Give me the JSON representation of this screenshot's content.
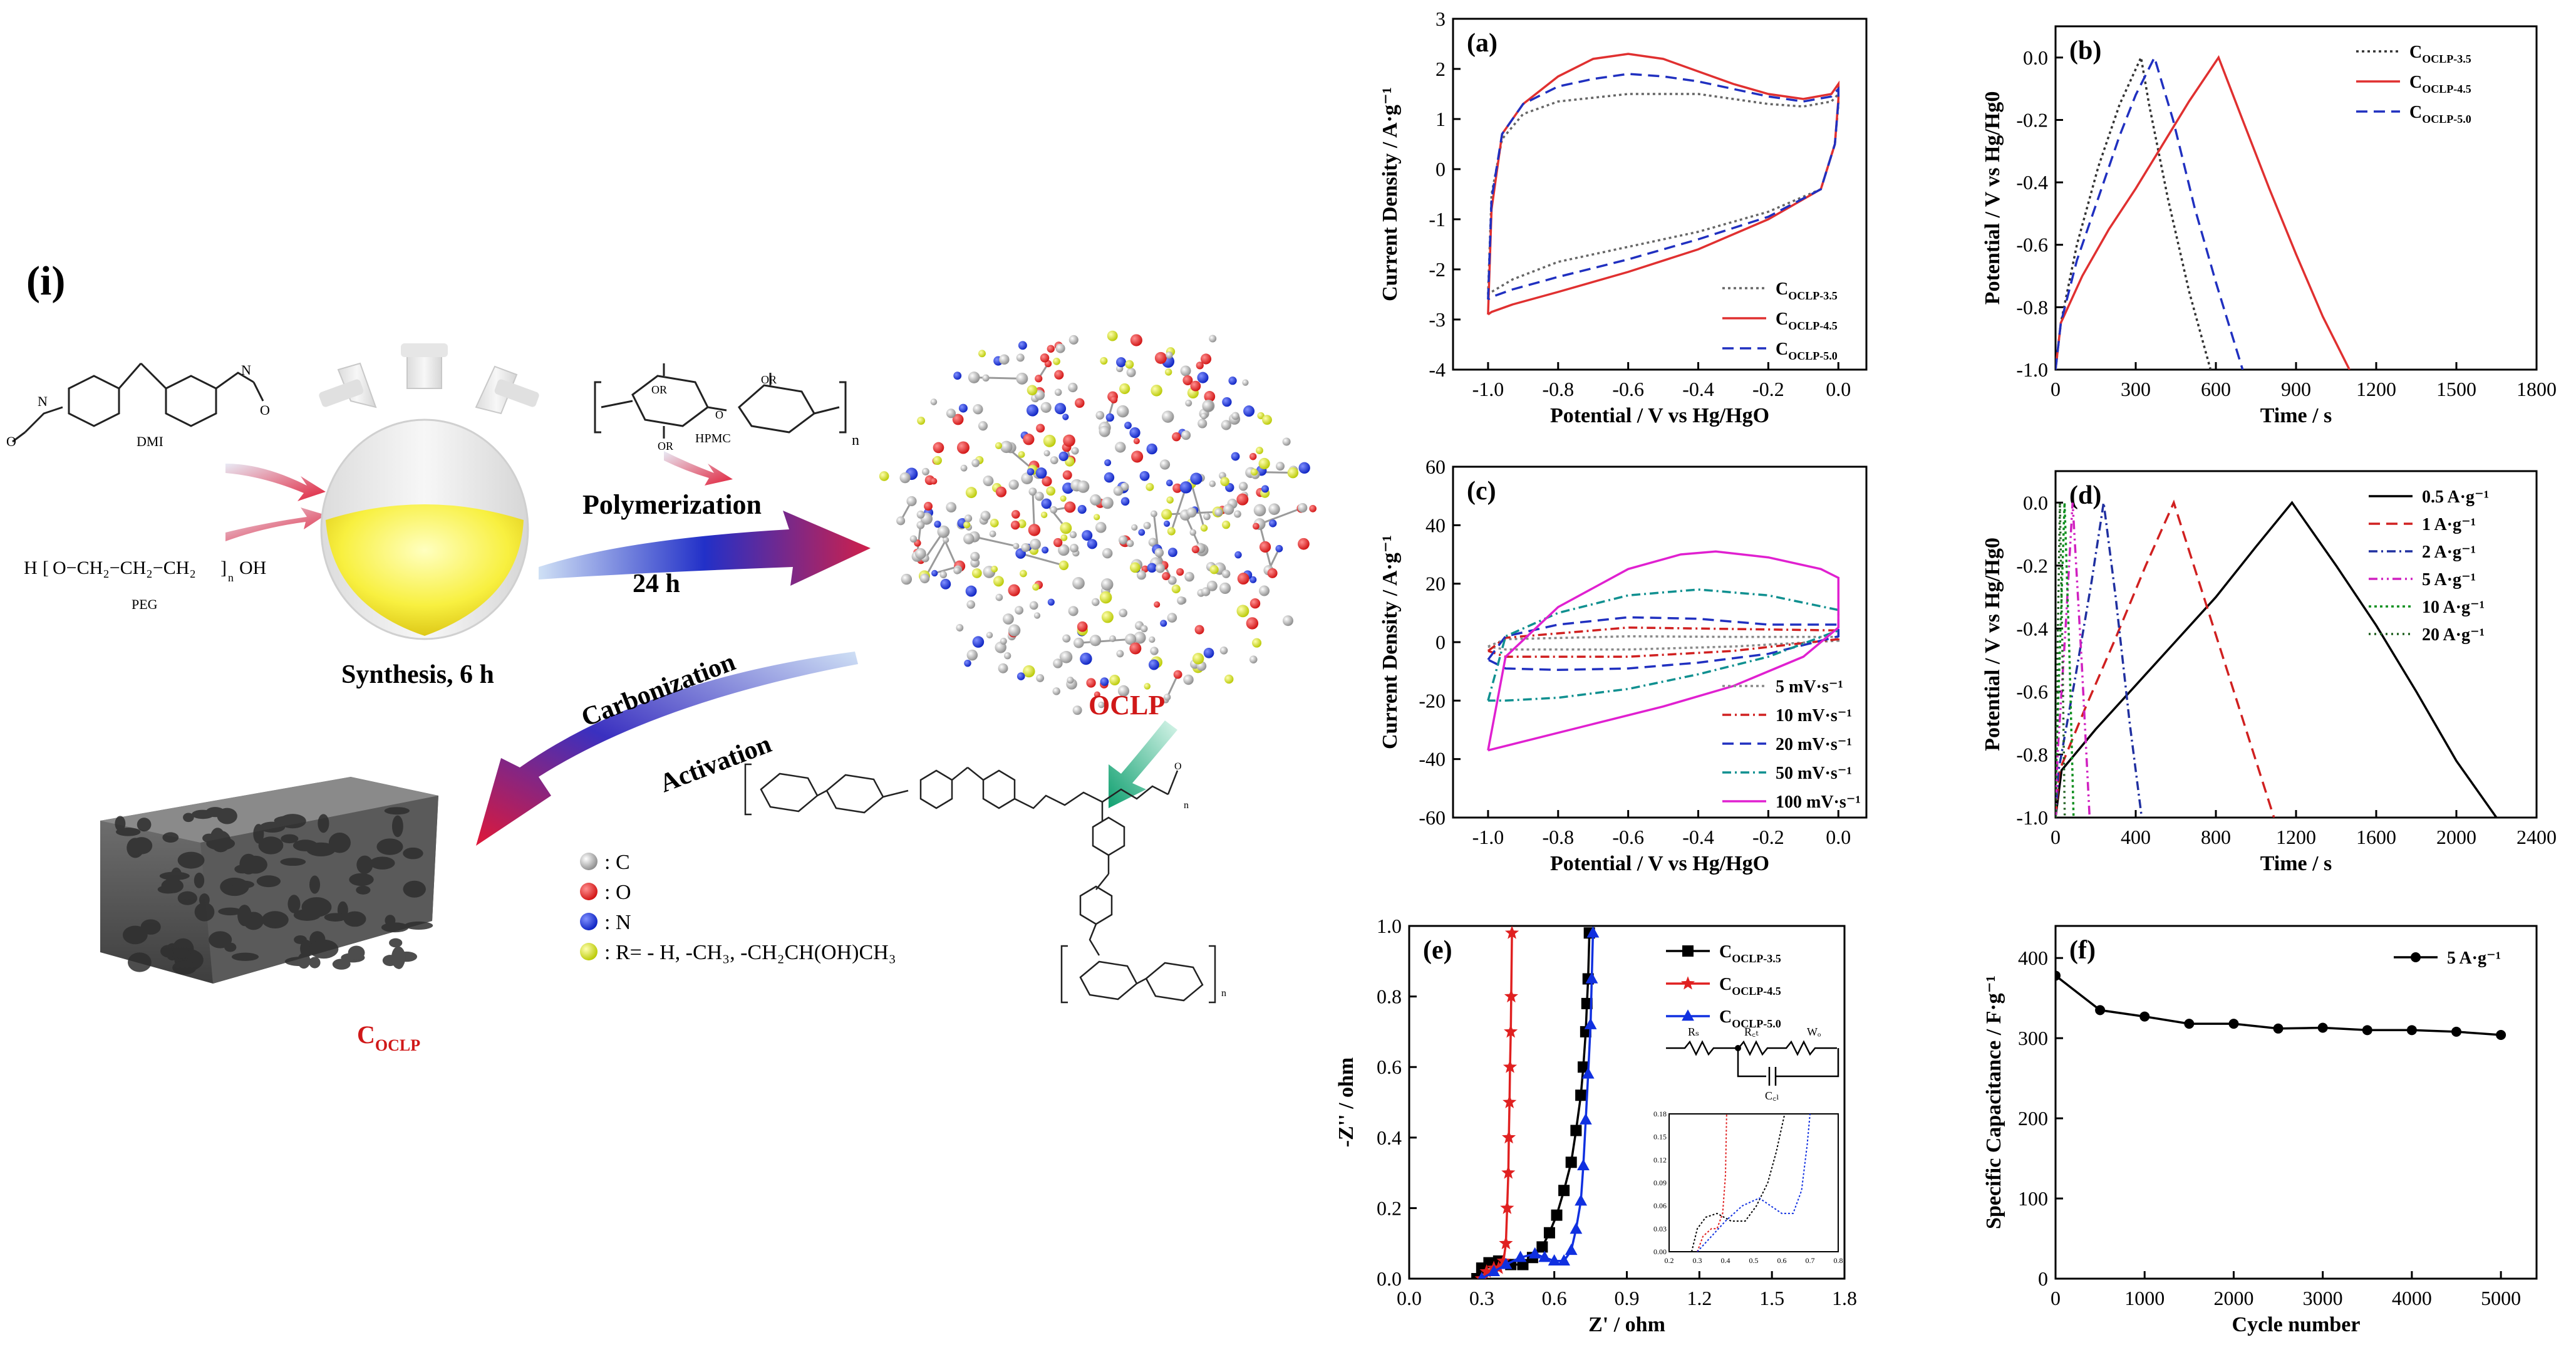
{
  "scheme": {
    "label": "(i)",
    "dmi": "DMI",
    "peg": "PEG",
    "hpmc": "HPMC",
    "n": "n",
    "synthesis": "Synthesis,  6 h",
    "polymerization": "Polymerization",
    "time": "24 h",
    "carbonization": "Carbonization",
    "activation": "Activation",
    "oclp": "OCLP",
    "coclp_main": "C",
    "coclp_sub": "OCLP",
    "peg_formula": "H",
    "peg_chain": "O−CH₂−CH₂−CH₂",
    "peg_end": "OH",
    "legend": [
      {
        "sym": ": C",
        "color": "#9a9a9a"
      },
      {
        "sym": ": O",
        "color": "#e02020"
      },
      {
        "sym": ": N",
        "color": "#1030d0"
      },
      {
        "sym": ": R= - H, -CH₃, -CH₂CH(OH)CH₃",
        "color": "#d8e030"
      }
    ]
  },
  "chart_data": [
    {
      "id": "a",
      "type": "line",
      "panel": "(a)",
      "xlabel": "Potential / V vs Hg/HgO",
      "ylabel": "Current Density / A·g⁻¹",
      "xlim": [
        -1.1,
        0.08
      ],
      "ylim": [
        -4,
        3
      ],
      "xticks": [
        -1.0,
        -0.8,
        -0.6,
        -0.4,
        -0.2,
        0.0
      ],
      "yticks": [
        -4,
        -3,
        -2,
        -1,
        0,
        1,
        2,
        3
      ],
      "xtick_labels": [
        "-1.0",
        "-0.8",
        "-0.6",
        "-0.4",
        "-0.2",
        "0.0"
      ],
      "ytick_labels": [
        "-4",
        "-3",
        "-2",
        "-1",
        "0",
        "1",
        "2",
        "3"
      ],
      "series": [
        {
          "name": "C",
          "sub": "OCLP-3.5",
          "color": "#666666",
          "dash": "4,5",
          "x": [
            -1.0,
            -0.99,
            -0.96,
            -0.9,
            -0.8,
            -0.6,
            -0.4,
            -0.2,
            -0.1,
            -0.02,
            0.0,
            0.0,
            -0.01,
            -0.05,
            -0.2,
            -0.4,
            -0.6,
            -0.8,
            -0.93,
            -0.99,
            -1.0
          ],
          "y": [
            -2.5,
            -0.5,
            0.6,
            1.1,
            1.35,
            1.5,
            1.5,
            1.3,
            1.25,
            1.35,
            1.5,
            1.3,
            0.5,
            -0.4,
            -0.85,
            -1.25,
            -1.55,
            -1.85,
            -2.2,
            -2.45,
            -2.5
          ]
        },
        {
          "name": "C",
          "sub": "OCLP-4.5",
          "color": "#e03030",
          "dash": "",
          "x": [
            -1.0,
            -0.99,
            -0.96,
            -0.9,
            -0.8,
            -0.7,
            -0.6,
            -0.5,
            -0.4,
            -0.3,
            -0.2,
            -0.1,
            -0.02,
            0.0,
            0.0,
            -0.01,
            -0.05,
            -0.2,
            -0.4,
            -0.6,
            -0.8,
            -0.93,
            -0.99,
            -1.0
          ],
          "y": [
            -2.9,
            -0.8,
            0.7,
            1.3,
            1.85,
            2.2,
            2.3,
            2.2,
            1.95,
            1.7,
            1.5,
            1.4,
            1.5,
            1.7,
            1.4,
            0.5,
            -0.4,
            -1.0,
            -1.6,
            -2.05,
            -2.45,
            -2.7,
            -2.85,
            -2.9
          ]
        },
        {
          "name": "C",
          "sub": "OCLP-5.0",
          "color": "#2030c0",
          "dash": "18,10",
          "x": [
            -1.0,
            -0.99,
            -0.96,
            -0.9,
            -0.8,
            -0.7,
            -0.6,
            -0.5,
            -0.4,
            -0.3,
            -0.2,
            -0.1,
            -0.02,
            0.0,
            0.0,
            -0.01,
            -0.05,
            -0.2,
            -0.4,
            -0.6,
            -0.8,
            -0.93,
            -0.99,
            -1.0
          ],
          "y": [
            -2.6,
            -0.6,
            0.7,
            1.3,
            1.65,
            1.8,
            1.9,
            1.85,
            1.75,
            1.6,
            1.45,
            1.35,
            1.45,
            1.6,
            1.35,
            0.5,
            -0.4,
            -0.95,
            -1.4,
            -1.8,
            -2.15,
            -2.4,
            -2.55,
            -2.6
          ]
        }
      ],
      "legend_pos": "bottom-right"
    },
    {
      "id": "b",
      "type": "line",
      "panel": "(b)",
      "xlabel": "Time / s",
      "ylabel": "Potential / V vs Hg/Hg0",
      "xlim": [
        0,
        1800
      ],
      "ylim": [
        -1.0,
        0.1
      ],
      "xticks": [
        0,
        300,
        600,
        900,
        1200,
        1500,
        1800
      ],
      "yticks": [
        -1.0,
        -0.8,
        -0.6,
        -0.4,
        -0.2,
        0.0
      ],
      "xtick_labels": [
        "0",
        "300",
        "600",
        "900",
        "1200",
        "1500",
        "1800"
      ],
      "ytick_labels": [
        "-1.0",
        "-0.8",
        "-0.6",
        "-0.4",
        "-0.2",
        "0.0"
      ],
      "series": [
        {
          "name": "C",
          "sub": "OCLP-3.5",
          "color": "#333333",
          "dash": "4,5",
          "x": [
            0,
            20,
            80,
            160,
            240,
            320,
            350,
            420,
            500,
            580
          ],
          "y": [
            -1.0,
            -0.85,
            -0.6,
            -0.35,
            -0.15,
            0.0,
            -0.15,
            -0.45,
            -0.75,
            -1.0
          ]
        },
        {
          "name": "C",
          "sub": "OCLP-4.5",
          "color": "#e03030",
          "dash": "",
          "x": [
            0,
            20,
            100,
            200,
            300,
            400,
            500,
            610,
            700,
            800,
            900,
            1000,
            1100
          ],
          "y": [
            -1.0,
            -0.85,
            -0.7,
            -0.55,
            -0.42,
            -0.28,
            -0.14,
            0.0,
            -0.2,
            -0.42,
            -0.63,
            -0.83,
            -1.0
          ]
        },
        {
          "name": "C",
          "sub": "OCLP-5.0",
          "color": "#2030c0",
          "dash": "18,10",
          "x": [
            0,
            20,
            80,
            160,
            240,
            300,
            370,
            440,
            520,
            600,
            700
          ],
          "y": [
            -1.0,
            -0.85,
            -0.65,
            -0.45,
            -0.25,
            -0.12,
            0.0,
            -0.2,
            -0.48,
            -0.72,
            -1.0
          ]
        }
      ],
      "legend_pos": "top-right"
    },
    {
      "id": "c",
      "type": "line",
      "panel": "(c)",
      "xlabel": "Potential / V vs Hg/HgO",
      "ylabel": "Current Density / A·g⁻¹",
      "xlim": [
        -1.1,
        0.08
      ],
      "ylim": [
        -60,
        60
      ],
      "xticks": [
        -1.0,
        -0.8,
        -0.6,
        -0.4,
        -0.2,
        0.0
      ],
      "yticks": [
        -60,
        -40,
        -20,
        0,
        20,
        40,
        60
      ],
      "xtick_labels": [
        "-1.0",
        "-0.8",
        "-0.6",
        "-0.4",
        "-0.2",
        "0.0"
      ],
      "ytick_labels": [
        "-60",
        "-40",
        "-20",
        "0",
        "20",
        "40",
        "60"
      ],
      "series": [
        {
          "name": "5 mV·s⁻¹",
          "color": "#888888",
          "dash": "4,5",
          "x": [
            -1.0,
            -0.95,
            -0.6,
            -0.3,
            0.0,
            0.0,
            -0.3,
            -0.6,
            -0.95,
            -1.0
          ],
          "y": [
            -1.5,
            1.0,
            2.0,
            1.8,
            1.8,
            0.5,
            -1.5,
            -2.5,
            -2.5,
            -1.5
          ]
        },
        {
          "name": "10 mV·s⁻¹",
          "color": "#d02020",
          "dash": "14,6,3,6",
          "x": [
            -1.0,
            -0.95,
            -0.6,
            -0.3,
            0.0,
            0.0,
            -0.3,
            -0.6,
            -0.95,
            -1.0
          ],
          "y": [
            -3,
            1.5,
            5,
            4.5,
            4,
            1,
            -3,
            -5,
            -5,
            -3
          ]
        },
        {
          "name": "20 mV·s⁻¹",
          "color": "#2030c0",
          "dash": "18,10",
          "x": [
            -1.0,
            -0.95,
            -0.8,
            -0.6,
            -0.4,
            -0.2,
            0.0,
            0.0,
            -0.2,
            -0.4,
            -0.6,
            -0.8,
            -0.95,
            -1.0
          ],
          "y": [
            -6,
            2,
            6,
            8.5,
            8,
            6,
            6,
            2,
            -4,
            -7,
            -9,
            -9.5,
            -9,
            -6
          ]
        },
        {
          "name": "50 mV·s⁻¹",
          "color": "#109090",
          "dash": "14,6,3,6",
          "x": [
            -1.0,
            -0.95,
            -0.8,
            -0.6,
            -0.4,
            -0.2,
            0.0,
            0.0,
            -0.2,
            -0.4,
            -0.6,
            -0.8,
            -0.95,
            -1.0
          ],
          "y": [
            -20,
            2,
            10,
            16,
            18,
            16,
            11,
            4,
            -5,
            -11,
            -16,
            -19,
            -20,
            -20
          ]
        },
        {
          "name": "100 mV·s⁻¹",
          "color": "#e020d0",
          "dash": "",
          "x": [
            -1.0,
            -0.95,
            -0.8,
            -0.6,
            -0.45,
            -0.35,
            -0.2,
            -0.05,
            0.0,
            0.0,
            -0.1,
            -0.3,
            -0.5,
            -0.7,
            -0.9,
            -1.0
          ],
          "y": [
            -37,
            -5,
            12,
            25,
            30,
            31,
            29,
            25,
            22,
            5,
            -5,
            -15,
            -22,
            -28,
            -34,
            -37
          ]
        }
      ],
      "legend_pos": "bottom-right"
    },
    {
      "id": "d",
      "type": "line",
      "panel": "(d)",
      "xlabel": "Time / s",
      "ylabel": "Potential / V vs Hg/Hg0",
      "xlim": [
        0,
        2400
      ],
      "ylim": [
        -1.0,
        0.1
      ],
      "xticks": [
        0,
        400,
        800,
        1200,
        1600,
        2000,
        2400
      ],
      "yticks": [
        -1.0,
        -0.8,
        -0.6,
        -0.4,
        -0.2,
        0.0
      ],
      "xtick_labels": [
        "0",
        "400",
        "800",
        "1200",
        "1600",
        "2000",
        "2400"
      ],
      "ytick_labels": [
        "-1.0",
        "-0.8",
        "-0.6",
        "-0.4",
        "-0.2",
        "0.0"
      ],
      "series": [
        {
          "name": "0.5 A·g⁻¹",
          "color": "#000000",
          "dash": "",
          "x": [
            0,
            30,
            200,
            400,
            600,
            800,
            1000,
            1180,
            1400,
            1600,
            1800,
            2000,
            2200
          ],
          "y": [
            -1.0,
            -0.85,
            -0.72,
            -0.58,
            -0.44,
            -0.3,
            -0.14,
            0.0,
            -0.2,
            -0.39,
            -0.6,
            -0.82,
            -1.0
          ]
        },
        {
          "name": "1 A·g⁻¹",
          "color": "#d02020",
          "dash": "18,10",
          "x": [
            0,
            20,
            150,
            300,
            450,
            590,
            700,
            850,
            1000,
            1090
          ],
          "y": [
            -1.0,
            -0.85,
            -0.65,
            -0.43,
            -0.2,
            0.0,
            -0.22,
            -0.52,
            -0.82,
            -1.0
          ]
        },
        {
          "name": "2 A·g⁻¹",
          "color": "#2030a0",
          "dash": "14,6,3,6",
          "x": [
            0,
            15,
            100,
            180,
            240,
            300,
            370,
            430
          ],
          "y": [
            -1.0,
            -0.85,
            -0.55,
            -0.25,
            0.0,
            -0.3,
            -0.7,
            -1.0
          ]
        },
        {
          "name": "5 A·g⁻¹",
          "color": "#d020c0",
          "dash": "14,6,3,6,3,6",
          "x": [
            0,
            10,
            50,
            85,
            130,
            170
          ],
          "y": [
            -1.0,
            -0.8,
            -0.4,
            0.0,
            -0.5,
            -1.0
          ]
        },
        {
          "name": "10 A·g⁻¹",
          "color": "#109020",
          "dash": "4,5",
          "x": [
            0,
            5,
            25,
            45,
            70,
            90
          ],
          "y": [
            -1.0,
            -0.8,
            -0.4,
            0.0,
            -0.5,
            -1.0
          ]
        },
        {
          "name": "20 A·g⁻¹",
          "color": "#206020",
          "dash": "3,6",
          "x": [
            0,
            3,
            12,
            22,
            35,
            46
          ],
          "y": [
            -1.0,
            -0.8,
            -0.4,
            0.0,
            -0.5,
            -1.0
          ]
        }
      ],
      "legend_pos": "top-right"
    },
    {
      "id": "e",
      "type": "scatter",
      "panel": "(e)",
      "xlabel": "Z' / ohm",
      "ylabel": "-Z'' / ohm",
      "xlim": [
        0.0,
        1.8
      ],
      "ylim": [
        0.0,
        1.0
      ],
      "xticks": [
        0.0,
        0.3,
        0.6,
        0.9,
        1.2,
        1.5,
        1.8
      ],
      "yticks": [
        0.0,
        0.2,
        0.4,
        0.6,
        0.8,
        1.0
      ],
      "xtick_labels": [
        "0.0",
        "0.3",
        "0.6",
        "0.9",
        "1.2",
        "1.5",
        "1.8"
      ],
      "ytick_labels": [
        "0.0",
        "0.2",
        "0.4",
        "0.6",
        "0.8",
        "1.0"
      ],
      "series": [
        {
          "name": "C",
          "sub": "OCLP-3.5",
          "color": "#000000",
          "marker": "square",
          "x": [
            0.28,
            0.3,
            0.33,
            0.37,
            0.42,
            0.47,
            0.51,
            0.55,
            0.58,
            0.61,
            0.64,
            0.67,
            0.69,
            0.71,
            0.72,
            0.73,
            0.735,
            0.74,
            0.745
          ],
          "y": [
            0.0,
            0.03,
            0.045,
            0.05,
            0.04,
            0.04,
            0.06,
            0.09,
            0.13,
            0.18,
            0.25,
            0.33,
            0.42,
            0.52,
            0.6,
            0.7,
            0.78,
            0.85,
            0.98
          ]
        },
        {
          "name": "C",
          "sub": "OCLP-4.5",
          "color": "#e02020",
          "marker": "star",
          "x": [
            0.3,
            0.32,
            0.35,
            0.37,
            0.39,
            0.4,
            0.405,
            0.41,
            0.412,
            0.415,
            0.417,
            0.42,
            0.422,
            0.425
          ],
          "y": [
            0.0,
            0.02,
            0.03,
            0.03,
            0.05,
            0.1,
            0.2,
            0.3,
            0.4,
            0.5,
            0.6,
            0.7,
            0.8,
            0.98
          ]
        },
        {
          "name": "C",
          "sub": "OCLP-5.0",
          "color": "#1030e0",
          "marker": "triangle",
          "x": [
            0.3,
            0.35,
            0.4,
            0.46,
            0.52,
            0.56,
            0.6,
            0.64,
            0.67,
            0.69,
            0.71,
            0.72,
            0.73,
            0.74,
            0.75,
            0.755,
            0.76
          ],
          "y": [
            0.0,
            0.02,
            0.04,
            0.06,
            0.07,
            0.06,
            0.05,
            0.05,
            0.08,
            0.14,
            0.22,
            0.32,
            0.45,
            0.58,
            0.72,
            0.85,
            0.98
          ]
        }
      ],
      "legend_pos": "top-right",
      "inset": {
        "circuit_labels": [
          "Rₛ",
          "R꜀ₜ",
          "Wₒ",
          "C꜀ₗ"
        ],
        "xticks": [
          "0.2",
          "0.3",
          "0.4",
          "0.5",
          "0.6",
          "0.7",
          "0.8"
        ],
        "yticks": [
          "0.00",
          "0.03",
          "0.06",
          "0.09",
          "0.12",
          "0.15",
          "0.18"
        ]
      }
    },
    {
      "id": "f",
      "type": "line",
      "panel": "(f)",
      "xlabel": "Cycle number",
      "ylabel": "Specific Capacitance / F·g⁻¹",
      "xlim": [
        0,
        5400
      ],
      "ylim": [
        0,
        440
      ],
      "xticks": [
        0,
        1000,
        2000,
        3000,
        4000,
        5000
      ],
      "yticks": [
        0,
        100,
        200,
        300,
        400
      ],
      "xtick_labels": [
        "0",
        "1000",
        "2000",
        "3000",
        "4000",
        "5000"
      ],
      "ytick_labels": [
        "0",
        "100",
        "200",
        "300",
        "400"
      ],
      "series": [
        {
          "name": "5 A·g⁻¹",
          "color": "#000000",
          "marker": "circle",
          "x": [
            0,
            500,
            1000,
            1500,
            2000,
            2500,
            3000,
            3500,
            4000,
            4500,
            5000
          ],
          "y": [
            378,
            335,
            327,
            318,
            318,
            312,
            313,
            310,
            310,
            308,
            304
          ]
        }
      ],
      "legend_pos": "top-right"
    }
  ]
}
